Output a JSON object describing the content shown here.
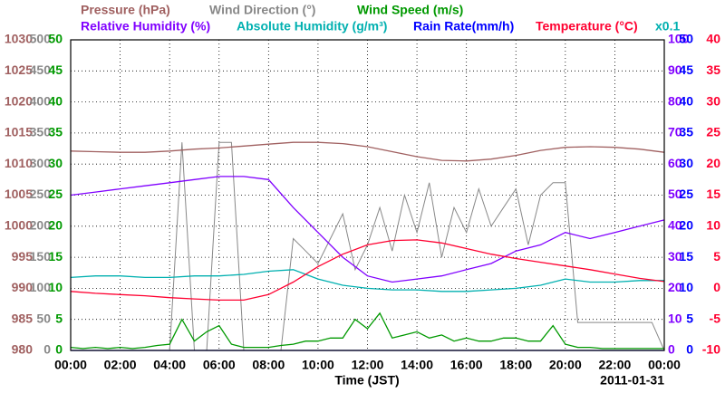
{
  "chart_data": {
    "type": "line",
    "x_label": "Time (JST)",
    "date_label": "2011-01-31",
    "scale_note": "x0.1",
    "scale_note_color": "#00b0b0",
    "grid": true,
    "xlim": [
      0,
      24
    ],
    "xticks": [
      {
        "value": 0,
        "label": "00:00"
      },
      {
        "value": 2,
        "label": "02:00"
      },
      {
        "value": 4,
        "label": "04:00"
      },
      {
        "value": 6,
        "label": "06:00"
      },
      {
        "value": 8,
        "label": "08:00"
      },
      {
        "value": 10,
        "label": "10:00"
      },
      {
        "value": 12,
        "label": "12:00"
      },
      {
        "value": 14,
        "label": "14:00"
      },
      {
        "value": 16,
        "label": "16:00"
      },
      {
        "value": 18,
        "label": "18:00"
      },
      {
        "value": 20,
        "label": "20:00"
      },
      {
        "value": 22,
        "label": "22:00"
      },
      {
        "value": 24,
        "label": "00:00"
      }
    ],
    "axes": [
      {
        "color": "#a06060",
        "ylim": [
          980,
          1030
        ],
        "yticks": [
          980,
          985,
          990,
          995,
          1000,
          1005,
          1010,
          1015,
          1020,
          1025,
          1030
        ]
      },
      {
        "color": "#888888",
        "ylim": [
          0,
          500
        ],
        "yticks": [
          0,
          50,
          100,
          150,
          200,
          250,
          300,
          350,
          400,
          450,
          500
        ]
      },
      {
        "color": "#009900",
        "ylim": [
          0,
          50
        ],
        "yticks": [
          0,
          5,
          10,
          15,
          20,
          25,
          30,
          35,
          40,
          45,
          50
        ]
      },
      {
        "color": "#8000ff",
        "ylim": [
          0,
          100
        ],
        "yticks": [
          0,
          10,
          20,
          30,
          40,
          50,
          60,
          70,
          80,
          90,
          100
        ]
      },
      {
        "color": "#0000ff",
        "ylim": [
          0,
          50
        ],
        "yticks": [
          0,
          5,
          10,
          15,
          20,
          25,
          30,
          35,
          40,
          45,
          50
        ]
      },
      {
        "color": "#ff0030",
        "ylim": [
          -10,
          40
        ],
        "yticks": [
          -10,
          -5,
          0,
          5,
          10,
          15,
          20,
          25,
          30,
          35,
          40
        ]
      }
    ],
    "x": [
      0,
      1,
      2,
      3,
      4,
      5,
      6,
      7,
      8,
      9,
      10,
      11,
      12,
      13,
      14,
      15,
      16,
      17,
      18,
      19,
      20,
      21,
      22,
      23,
      24
    ],
    "series": [
      {
        "name": "Pressure (hPa)",
        "color": "#a06060",
        "axis": 0,
        "values": [
          1012.1,
          1012.0,
          1011.9,
          1011.9,
          1012.1,
          1012.4,
          1012.6,
          1012.9,
          1013.2,
          1013.5,
          1013.5,
          1013.3,
          1012.8,
          1012.0,
          1011.2,
          1010.6,
          1010.5,
          1010.8,
          1011.4,
          1012.2,
          1012.7,
          1012.8,
          1012.7,
          1012.4,
          1011.9
        ]
      },
      {
        "name": "Wind Direction (°)",
        "color": "#888888",
        "axis": 1,
        "x": [
          0,
          0.5,
          1,
          1.5,
          2,
          2.5,
          3,
          3.5,
          4,
          4.5,
          5,
          5.5,
          6,
          6.5,
          7,
          7.5,
          8,
          8.5,
          9,
          9.5,
          10,
          10.5,
          11,
          11.5,
          12,
          12.5,
          13,
          13.5,
          14,
          14.5,
          15,
          15.5,
          16,
          16.5,
          17,
          17.5,
          18,
          18.5,
          19,
          19.5,
          20,
          20.5,
          21,
          21.5,
          22,
          22.5,
          23,
          23.5,
          24
        ],
        "values": [
          0,
          0,
          0,
          0,
          0,
          0,
          0,
          0,
          0,
          335,
          0,
          0,
          335,
          335,
          0,
          0,
          0,
          0,
          180,
          160,
          140,
          180,
          220,
          130,
          170,
          230,
          160,
          250,
          190,
          270,
          150,
          230,
          190,
          260,
          200,
          230,
          260,
          170,
          250,
          270,
          270,
          45,
          45,
          45,
          45,
          45,
          45,
          45,
          0
        ]
      },
      {
        "name": "Wind Speed (m/s)",
        "color": "#009900",
        "axis": 2,
        "x": [
          0,
          0.5,
          1,
          1.5,
          2,
          2.5,
          3,
          3.5,
          4,
          4.5,
          5,
          5.5,
          6,
          6.5,
          7,
          7.5,
          8,
          8.5,
          9,
          9.5,
          10,
          10.5,
          11,
          11.5,
          12,
          12.5,
          13,
          13.5,
          14,
          14.5,
          15,
          15.5,
          16,
          16.5,
          17,
          17.5,
          18,
          18.5,
          19,
          19.5,
          20,
          20.5,
          21,
          21.5,
          22,
          22.5,
          23,
          23.5,
          24
        ],
        "values": [
          0.5,
          0.3,
          0.5,
          0.3,
          0.5,
          0.3,
          0.5,
          0.8,
          1,
          5,
          1.5,
          3,
          4,
          1,
          0.5,
          0.5,
          0.5,
          0.8,
          1,
          1.5,
          1.5,
          2,
          2,
          5,
          3.5,
          6,
          2,
          2.5,
          3,
          2,
          2.5,
          1.5,
          2,
          1.5,
          1.5,
          2,
          2,
          1.5,
          1.5,
          4,
          1,
          0.5,
          0.5,
          0.3,
          0.3,
          0.3,
          0.3,
          0.3,
          0.3
        ]
      },
      {
        "name": "Relative Humidity (%)",
        "color": "#8000ff",
        "axis": 3,
        "values": [
          50,
          51,
          52,
          53,
          54,
          55,
          56,
          56,
          55,
          46,
          38,
          30,
          24,
          22,
          23,
          24,
          26,
          28,
          32,
          34,
          38,
          36,
          38,
          40,
          42
        ]
      },
      {
        "name": "Absolute Humidity (g/m³)",
        "color": "#00b0b0",
        "axis": 3,
        "values": [
          23.5,
          24,
          24,
          23.5,
          23.5,
          24,
          24,
          24.5,
          25.5,
          26,
          23,
          21,
          20,
          19.5,
          19.5,
          19,
          19,
          19.5,
          20,
          21,
          23,
          22,
          22,
          22.5,
          22.5
        ]
      },
      {
        "name": "Rain Rate(mm/h)",
        "color": "#0000ff",
        "axis": 4,
        "values": [
          0,
          0,
          0,
          0,
          0,
          0,
          0,
          0,
          0,
          0,
          0,
          0,
          0,
          0,
          0,
          0,
          0,
          0,
          0,
          0,
          0,
          0,
          0,
          0,
          0
        ]
      },
      {
        "name": "Temperature (°C)",
        "color": "#ff0030",
        "axis": 5,
        "values": [
          -0.5,
          -0.8,
          -1,
          -1.2,
          -1.5,
          -1.7,
          -1.9,
          -1.9,
          -1,
          1,
          3.5,
          5.5,
          7,
          7.7,
          7.8,
          7.3,
          6.4,
          5.5,
          4.8,
          4.2,
          3.6,
          3,
          2.3,
          1.6,
          1.1
        ]
      }
    ]
  }
}
